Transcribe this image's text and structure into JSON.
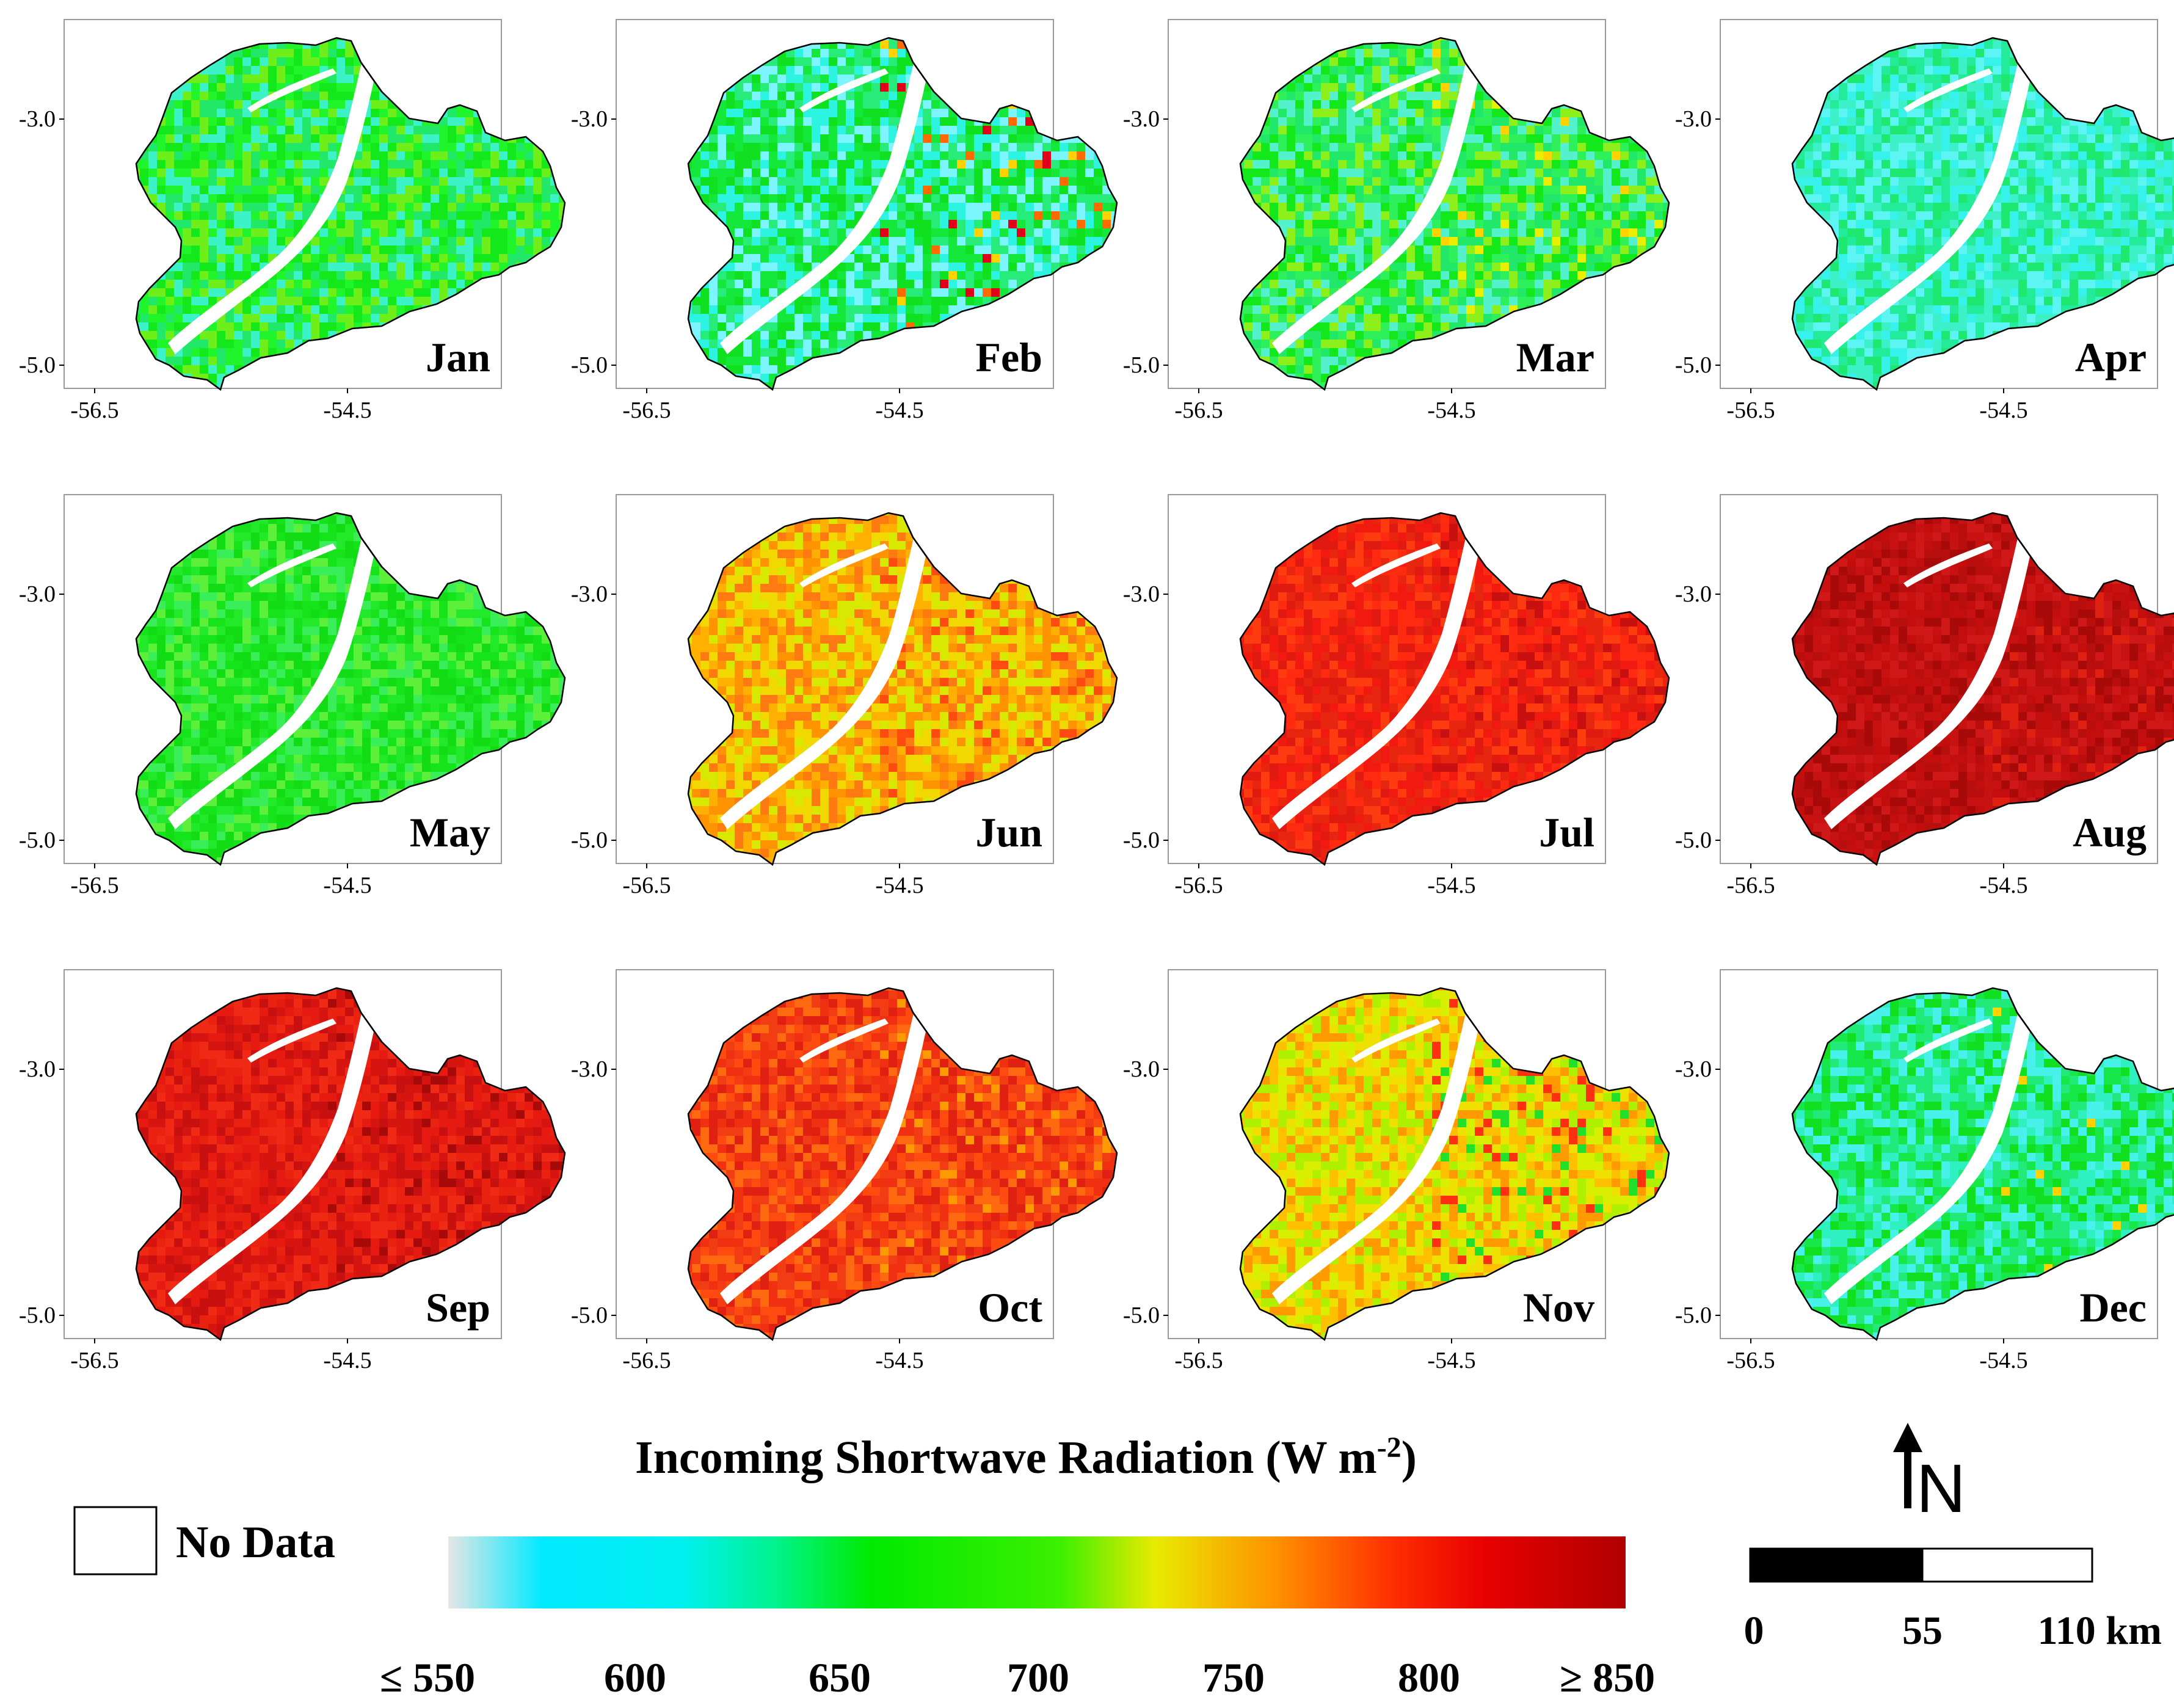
{
  "panels": [
    {
      "month": "Jan",
      "palette": [
        "#12e81a",
        "#1ff52a",
        "#3cf3c8",
        "#22e86a",
        "#6fef1a"
      ],
      "hot": [],
      "hot_share": 0
    },
    {
      "month": "Feb",
      "palette": [
        "#2cf4e0",
        "#14e83a",
        "#7df5ff",
        "#28ec7a",
        "#0fe020"
      ],
      "hot": [
        "#ffd200",
        "#ff6a00",
        "#e0001a"
      ],
      "hot_share": 0.06
    },
    {
      "month": "Mar",
      "palette": [
        "#12e81a",
        "#2ef05a",
        "#54f2cc",
        "#22e86a",
        "#8ef01a"
      ],
      "hot": [
        "#e8f000",
        "#ffd200"
      ],
      "hot_share": 0.05
    },
    {
      "month": "Apr",
      "palette": [
        "#36f2ea",
        "#22ec9a",
        "#5df4f4",
        "#1ee870",
        "#3cf0c8"
      ],
      "hot": [],
      "hot_share": 0
    },
    {
      "month": "May",
      "palette": [
        "#16e41a",
        "#22ea2a",
        "#3aee5a",
        "#12dc14",
        "#5cf03a"
      ],
      "hot": [],
      "hot_share": 0
    },
    {
      "month": "Jun",
      "palette": [
        "#ffb000",
        "#ff9400",
        "#f0d800",
        "#ff7a10",
        "#d8e800"
      ],
      "hot": [
        "#ff4a10"
      ],
      "hot_share": 0.08
    },
    {
      "month": "Jul",
      "palette": [
        "#f21a10",
        "#ff2a10",
        "#e01a10",
        "#ff3c10",
        "#e82610"
      ],
      "hot": [
        "#c81010"
      ],
      "hot_share": 0.1
    },
    {
      "month": "Aug",
      "palette": [
        "#b80e0e",
        "#c81212",
        "#a80a0a",
        "#d01818",
        "#c40e0e"
      ],
      "hot": [
        "#e02010"
      ],
      "hot_share": 0.08
    },
    {
      "month": "Sep",
      "palette": [
        "#e61a10",
        "#d61410",
        "#f02a14",
        "#c81010",
        "#ea2210"
      ],
      "hot": [
        "#a80a0a"
      ],
      "hot_share": 0.08
    },
    {
      "month": "Oct",
      "palette": [
        "#f03010",
        "#ff4a10",
        "#e02010",
        "#ff6a10",
        "#f23c14"
      ],
      "hot": [
        "#ff9a00"
      ],
      "hot_share": 0.07
    },
    {
      "month": "Nov",
      "palette": [
        "#f0e000",
        "#ffc000",
        "#d8f000",
        "#ff9a00",
        "#aef000"
      ],
      "hot": [
        "#ff3010",
        "#22e02a"
      ],
      "hot_share": 0.12
    },
    {
      "month": "Dec",
      "palette": [
        "#2ef0c0",
        "#16e84a",
        "#48f2ea",
        "#22ea7a",
        "#10e020"
      ],
      "hot": [
        "#ffd200"
      ],
      "hot_share": 0.02
    }
  ],
  "axes": {
    "y_labels": [
      "-3.0",
      "-5.0"
    ],
    "x_labels": [
      "-56.5",
      "-54.5"
    ]
  },
  "legend": {
    "title_prefix": "Incoming Shortwave Radiation (W m",
    "title_sup": "-2",
    "title_suffix": ")",
    "nodata_label": "No Data",
    "tick_labels": [
      "≤ 550",
      "600",
      "650",
      "700",
      "750",
      "800",
      "≥ 850"
    ],
    "colorbar_stops": [
      "#e6e6e6",
      "#00eaff",
      "#00f0f0",
      "#00f38a",
      "#00ea00",
      "#3cf000",
      "#e8ea00",
      "#ff9400",
      "#ff3000",
      "#e80000",
      "#b00000"
    ]
  },
  "north_arrow": {
    "label": "N"
  },
  "scale_bar": {
    "labels": [
      "0",
      "55",
      "110 km"
    ]
  }
}
